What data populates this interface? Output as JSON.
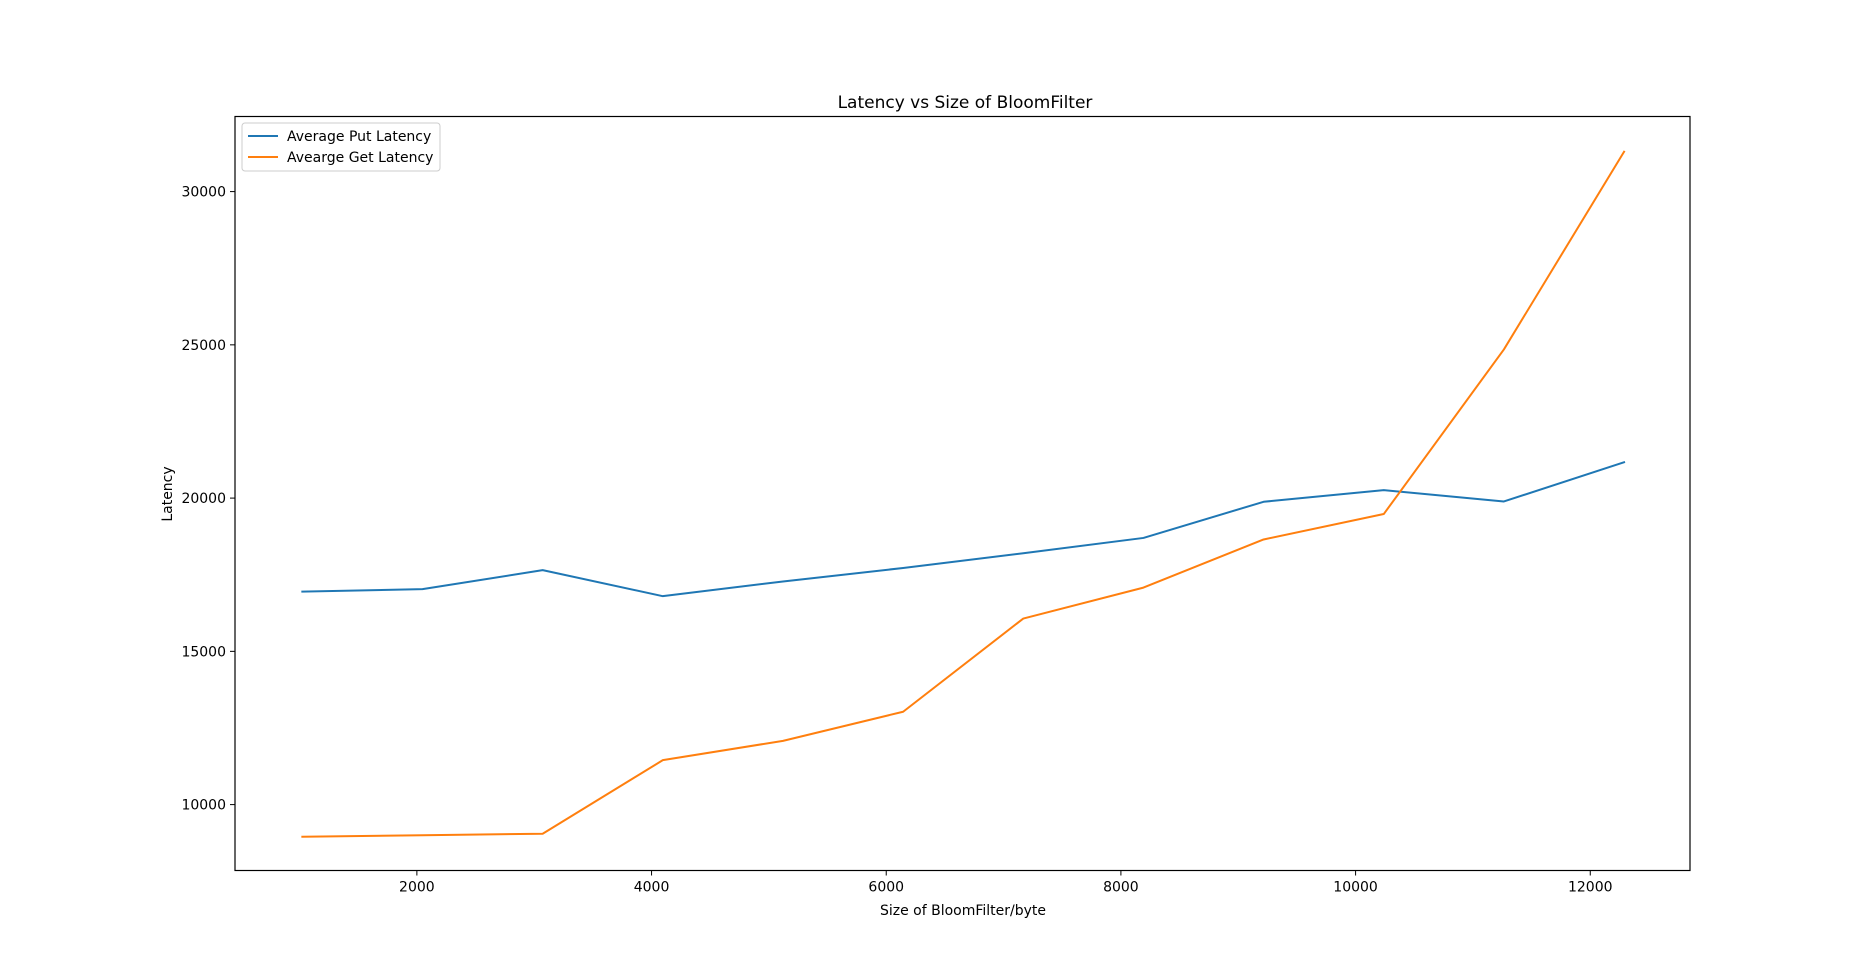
{
  "chart_data": {
    "type": "line",
    "title": "Latency vs Size of BloomFilter",
    "xlabel": "Size of BloomFilter/byte",
    "ylabel": "Latency",
    "xlim": [
      450,
      12850
    ],
    "ylim": [
      7850,
      32450
    ],
    "x_ticks": [
      2000,
      4000,
      6000,
      8000,
      10000,
      12000
    ],
    "x_tick_labels": [
      "2000",
      "4000",
      "6000",
      "8000",
      "10000",
      "12000"
    ],
    "y_ticks": [
      10000,
      15000,
      20000,
      25000,
      30000
    ],
    "y_tick_labels": [
      "10000",
      "15000",
      "20000",
      "25000",
      "30000"
    ],
    "grid": false,
    "legend_position": "top-left",
    "x": [
      1024,
      2048,
      3072,
      4096,
      5120,
      6144,
      7168,
      8192,
      9216,
      10240,
      11264,
      12288
    ],
    "series": [
      {
        "name": "Average Put Latency",
        "color": "#1f77b4",
        "values": [
          16950,
          17030,
          17650,
          16800,
          17280,
          17720,
          18200,
          18700,
          19880,
          20260,
          19890,
          21170
        ]
      },
      {
        "name": "Avearge Get Latency",
        "color": "#ff7f0e",
        "values": [
          8950,
          9000,
          9050,
          11450,
          12080,
          13030,
          16070,
          17080,
          18650,
          19480,
          24850,
          31300
        ]
      }
    ]
  }
}
